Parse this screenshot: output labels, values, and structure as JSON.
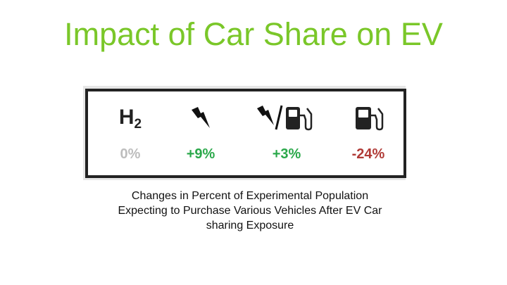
{
  "title": "Impact of Car Share on EV",
  "panel": {
    "columns": [
      {
        "icon": "hydrogen-h2-icon",
        "label": "H",
        "label_sub": "2",
        "value": "0%",
        "color": "#bdbdbd"
      },
      {
        "icon": "lightning-bolt-icon",
        "value": "+9%",
        "color": "#2aa84a"
      },
      {
        "icon": "lightning-bolt-and-fuel-pump-icon",
        "value": "+3%",
        "color": "#2aa84a"
      },
      {
        "icon": "fuel-pump-icon",
        "value": "-24%",
        "color": "#b03a36"
      }
    ]
  },
  "caption": {
    "line1": "Changes in Percent of Experimental Population",
    "line2": "Expecting to Purchase Various Vehicles After EV Car",
    "line3": "sharing Exposure"
  },
  "colors": {
    "title": "#7ac729",
    "positive": "#2aa84a",
    "neutral": "#bdbdbd",
    "negative": "#b03a36"
  }
}
